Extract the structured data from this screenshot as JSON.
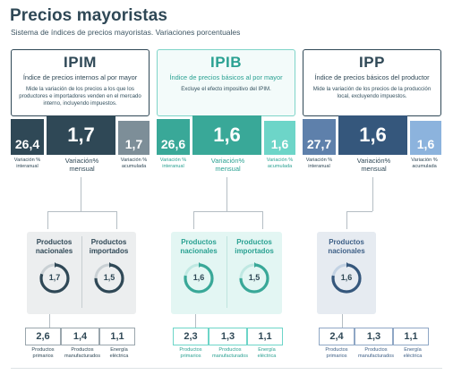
{
  "header": {
    "title": "Precios mayoristas",
    "subtitle": "Sistema de índices de precios mayoristas. Variaciones porcentuales"
  },
  "colors": {
    "ipim_dark": "#2f4856",
    "ipim_gray": "#7d8e98",
    "ipib_teal": "#39a898",
    "ipib_light": "#6dd5c8",
    "ipp_blue": "#35577c",
    "ipp_light": "#8cb3dd"
  },
  "indices": [
    {
      "code": "IPIM",
      "name": "Índice de precios internos al por mayor",
      "description": "Mide la variación de los precios a los que los productores e importadores venden en el mercado interno, incluyendo impuestos.",
      "interanual": "26,4",
      "mensual": "1,7",
      "acumulada": "1,7",
      "interanual_label": "Variación % interanual",
      "mensual_label": "Variación% mensual",
      "acumulada_label": "Variación % acumulada",
      "groups": [
        {
          "label": "Productos nacionales",
          "value": "1,7",
          "fraction": 0.8
        },
        {
          "label": "Productos importados",
          "value": "1,5",
          "fraction": 0.75
        }
      ],
      "breakdown": [
        {
          "label": "Productos primarios",
          "value": "2,6"
        },
        {
          "label": "Productos manufacturados",
          "value": "1,4"
        },
        {
          "label": "Energía eléctrica",
          "value": "1,1"
        }
      ]
    },
    {
      "code": "IPIB",
      "name": "Índice de precios básicos al por mayor",
      "description": "Excluye el efecto impositivo del IPIM.",
      "interanual": "26,6",
      "mensual": "1,6",
      "acumulada": "1,6",
      "interanual_label": "Variación % interanual",
      "mensual_label": "Variación% mensual",
      "acumulada_label": "Variación % acumulada",
      "groups": [
        {
          "label": "Productos nacionales",
          "value": "1,6",
          "fraction": 0.78
        },
        {
          "label": "Productos importados",
          "value": "1,5",
          "fraction": 0.75
        }
      ],
      "breakdown": [
        {
          "label": "Productos primarios",
          "value": "2,3"
        },
        {
          "label": "Productos manufacturados",
          "value": "1,3"
        },
        {
          "label": "Energía eléctrica",
          "value": "1,1"
        }
      ]
    },
    {
      "code": "IPP",
      "name": "Índice de precios básicos del productor",
      "description": "Mide la variación de los precios de la producción local, excluyendo impuestos.",
      "interanual": "27,7",
      "mensual": "1,6",
      "acumulada": "1,6",
      "interanual_label": "Variación % interanual",
      "mensual_label": "Variación% mensual",
      "acumulada_label": "Variación % acumulada",
      "groups": [
        {
          "label": "Productos nacionales",
          "value": "1,6",
          "fraction": 0.78
        }
      ],
      "breakdown": [
        {
          "label": "Productos primarios",
          "value": "2,4"
        },
        {
          "label": "Productos manufacturados",
          "value": "1,3"
        },
        {
          "label": "Energía eléctrica",
          "value": "1,1"
        }
      ]
    }
  ]
}
